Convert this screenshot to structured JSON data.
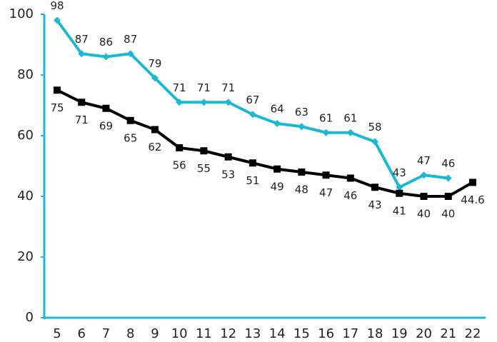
{
  "chart_data": {
    "type": "line",
    "categories": [
      "5",
      "6",
      "7",
      "8",
      "9",
      "10",
      "11",
      "12",
      "13",
      "14",
      "15",
      "16",
      "17",
      "18",
      "19",
      "20",
      "21",
      "22"
    ],
    "series": [
      {
        "color": "#1cb8d1",
        "marker": "diamond",
        "values": [
          98,
          87,
          86,
          87,
          79,
          71,
          71,
          71,
          67,
          64,
          63,
          61,
          61,
          58,
          43,
          47,
          46,
          null
        ]
      },
      {
        "color": "#000000",
        "marker": "square",
        "values": [
          75,
          71,
          69,
          65,
          62,
          56,
          55,
          53,
          51,
          49,
          48,
          47,
          46,
          43,
          41,
          40,
          40,
          44.6
        ]
      }
    ],
    "ylim": [
      0,
      100
    ],
    "yticks": [
      0,
      20,
      40,
      60,
      80,
      100
    ],
    "grid": false,
    "axis_color": "#1cb8d1"
  }
}
